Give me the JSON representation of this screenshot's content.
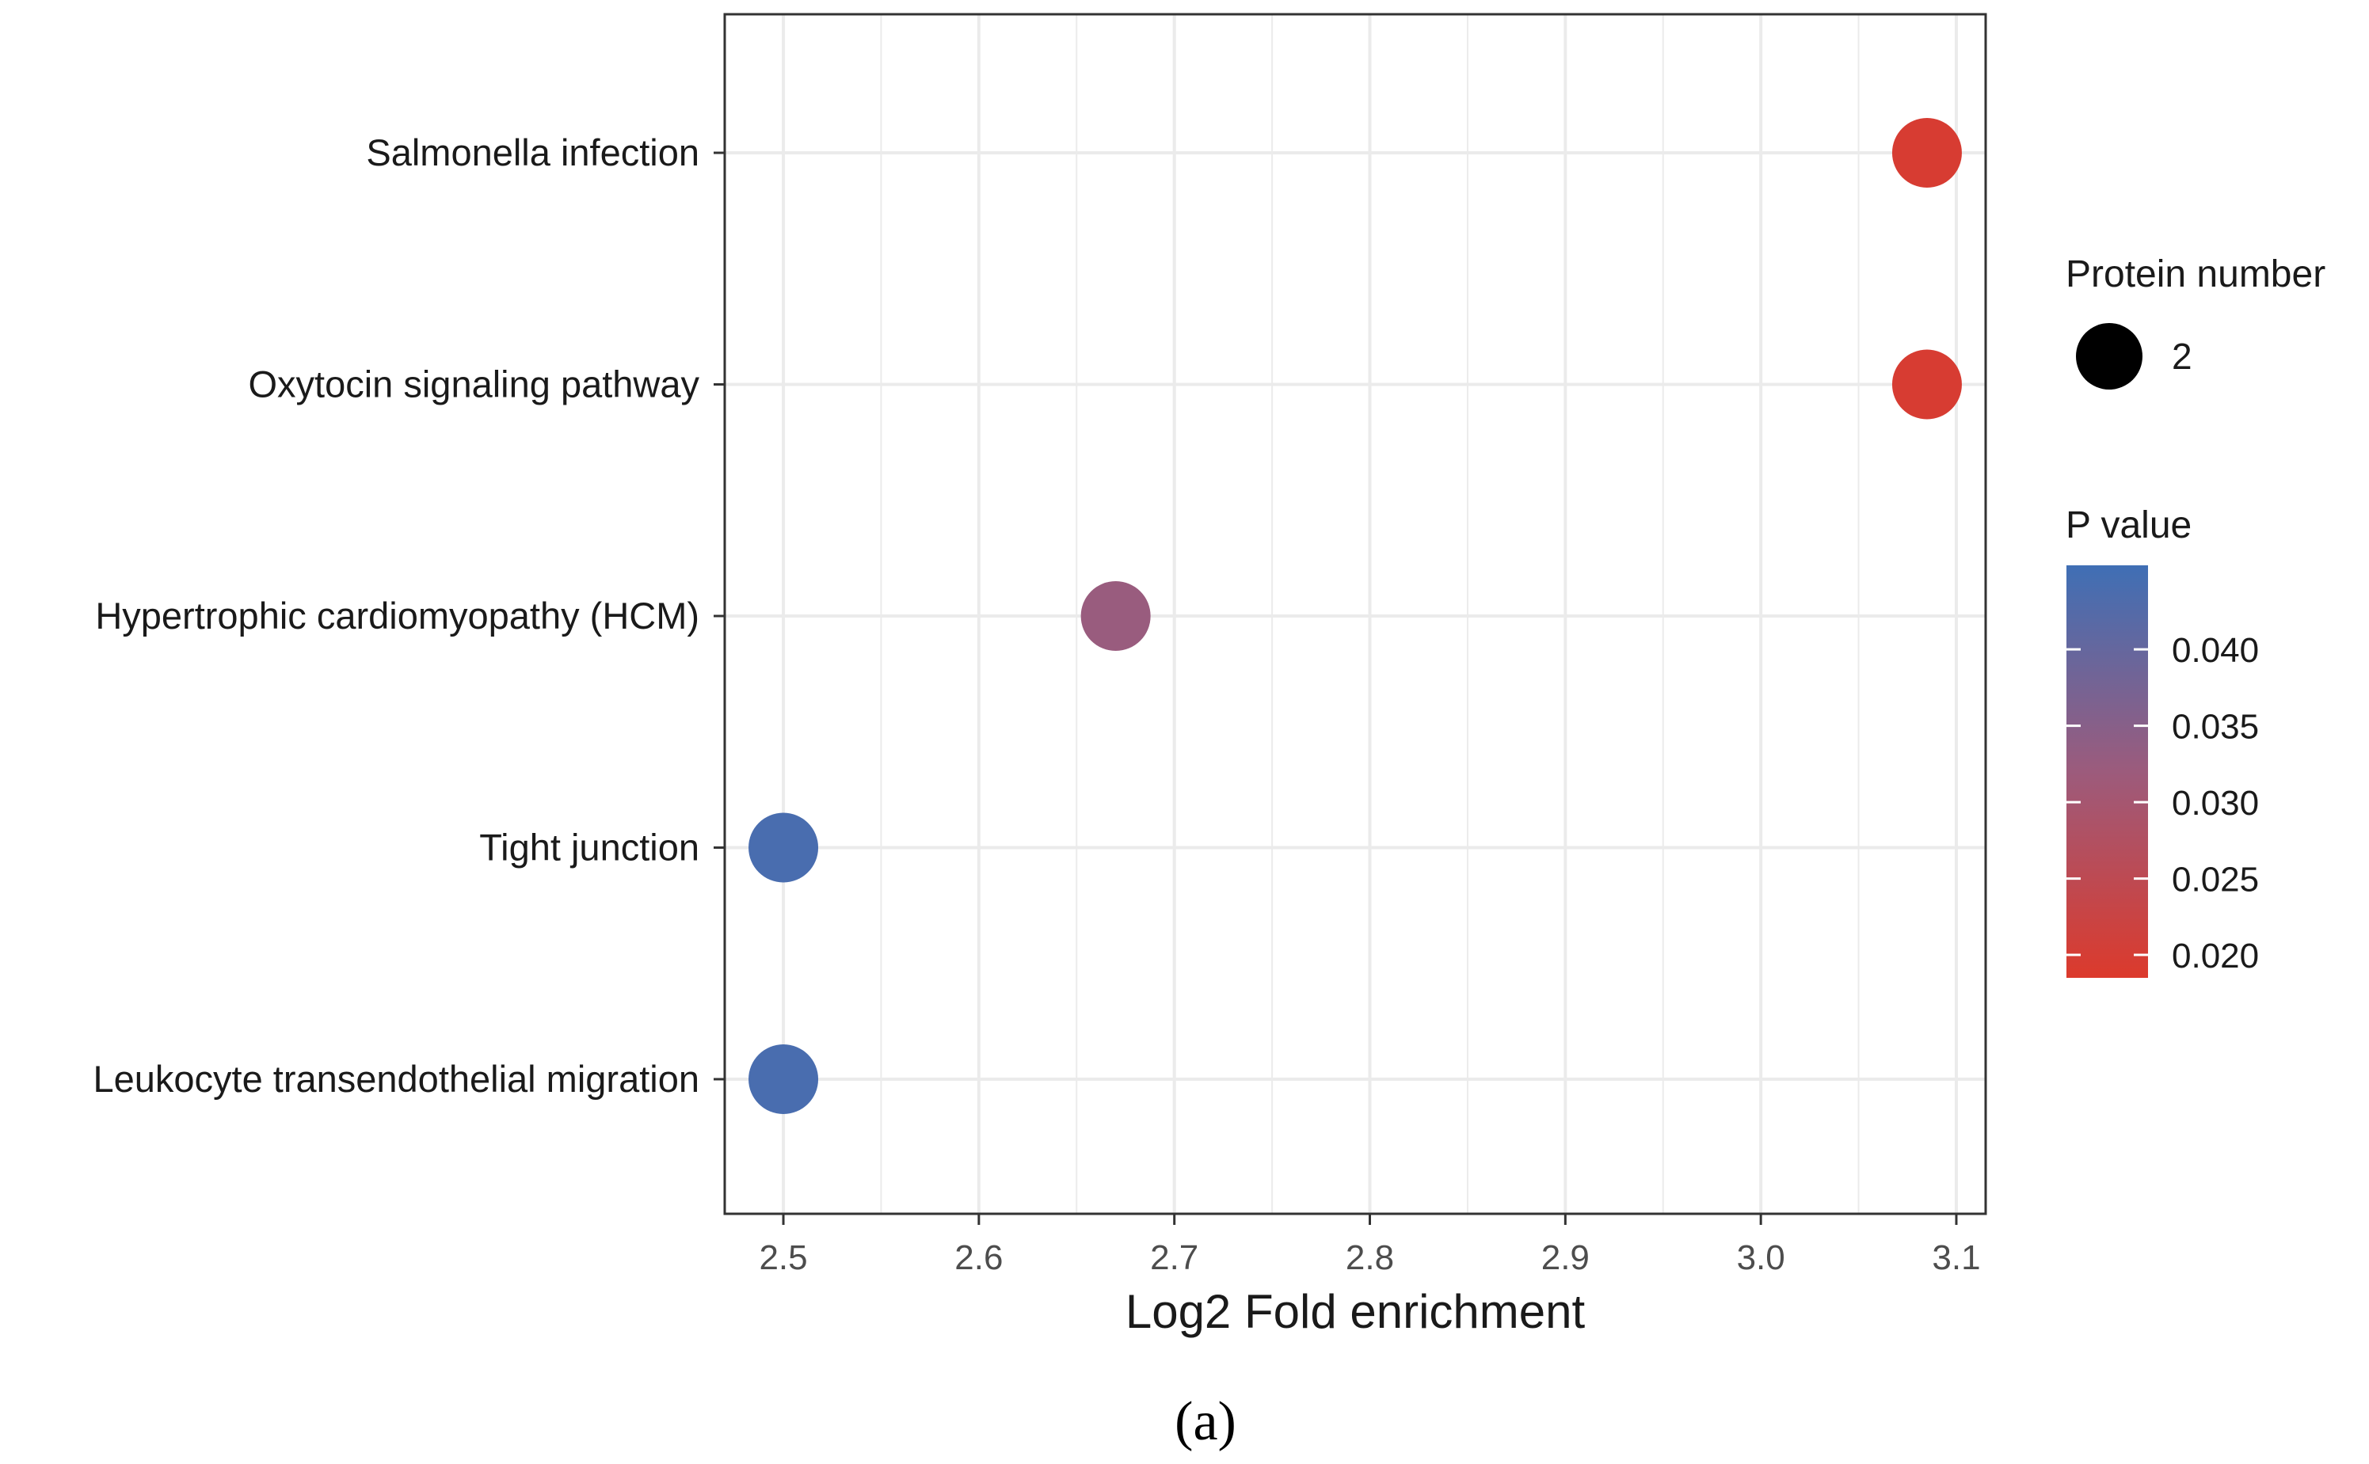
{
  "chart_data": {
    "type": "scatter",
    "title": "",
    "xlabel": "Log2 Fold enrichment",
    "ylabel": "",
    "xlim": [
      2.47,
      3.115
    ],
    "xticks": [
      2.5,
      2.6,
      2.7,
      2.8,
      2.9,
      3.0,
      3.1
    ],
    "xtick_labels": [
      "2.5",
      "2.6",
      "2.7",
      "2.8",
      "2.9",
      "3.0",
      "3.1"
    ],
    "categories": [
      "Salmonella infection",
      "Oxytocin signaling pathway",
      "Hypertrophic cardiomyopathy (HCM)",
      "Tight junction",
      "Leukocyte transendothelial migration"
    ],
    "points": [
      {
        "category": "Salmonella infection",
        "x": 3.085,
        "p_value": 0.0195,
        "protein_number": 2
      },
      {
        "category": "Oxytocin signaling pathway",
        "x": 3.085,
        "p_value": 0.0195,
        "protein_number": 2
      },
      {
        "category": "Hypertrophic cardiomyopathy (HCM)",
        "x": 2.67,
        "p_value": 0.0325,
        "protein_number": 2
      },
      {
        "category": "Tight junction",
        "x": 2.5,
        "p_value": 0.044,
        "protein_number": 2
      },
      {
        "category": "Leukocyte transendothelial migration",
        "x": 2.5,
        "p_value": 0.044,
        "protein_number": 2
      }
    ],
    "grid": true,
    "legend": {
      "size_title": "Protein number",
      "size_entries": [
        {
          "label": "2",
          "value": 2
        }
      ],
      "color_title": "P value",
      "color_range": [
        0.0185,
        0.0455
      ],
      "color_ticks": [
        0.04,
        0.035,
        0.03,
        0.025,
        0.02
      ],
      "color_tick_labels": [
        "0.040",
        "0.035",
        "0.030",
        "0.025",
        "0.020"
      ],
      "placement": "right"
    },
    "colors": {
      "low_p": "#dc3a2c",
      "mid_p": "#9c5b7c",
      "high_p": "#3f6fb5",
      "grid": "#ebebeb",
      "panel_border": "#333333",
      "text": "#1a1a1a"
    }
  },
  "caption": "(a)"
}
